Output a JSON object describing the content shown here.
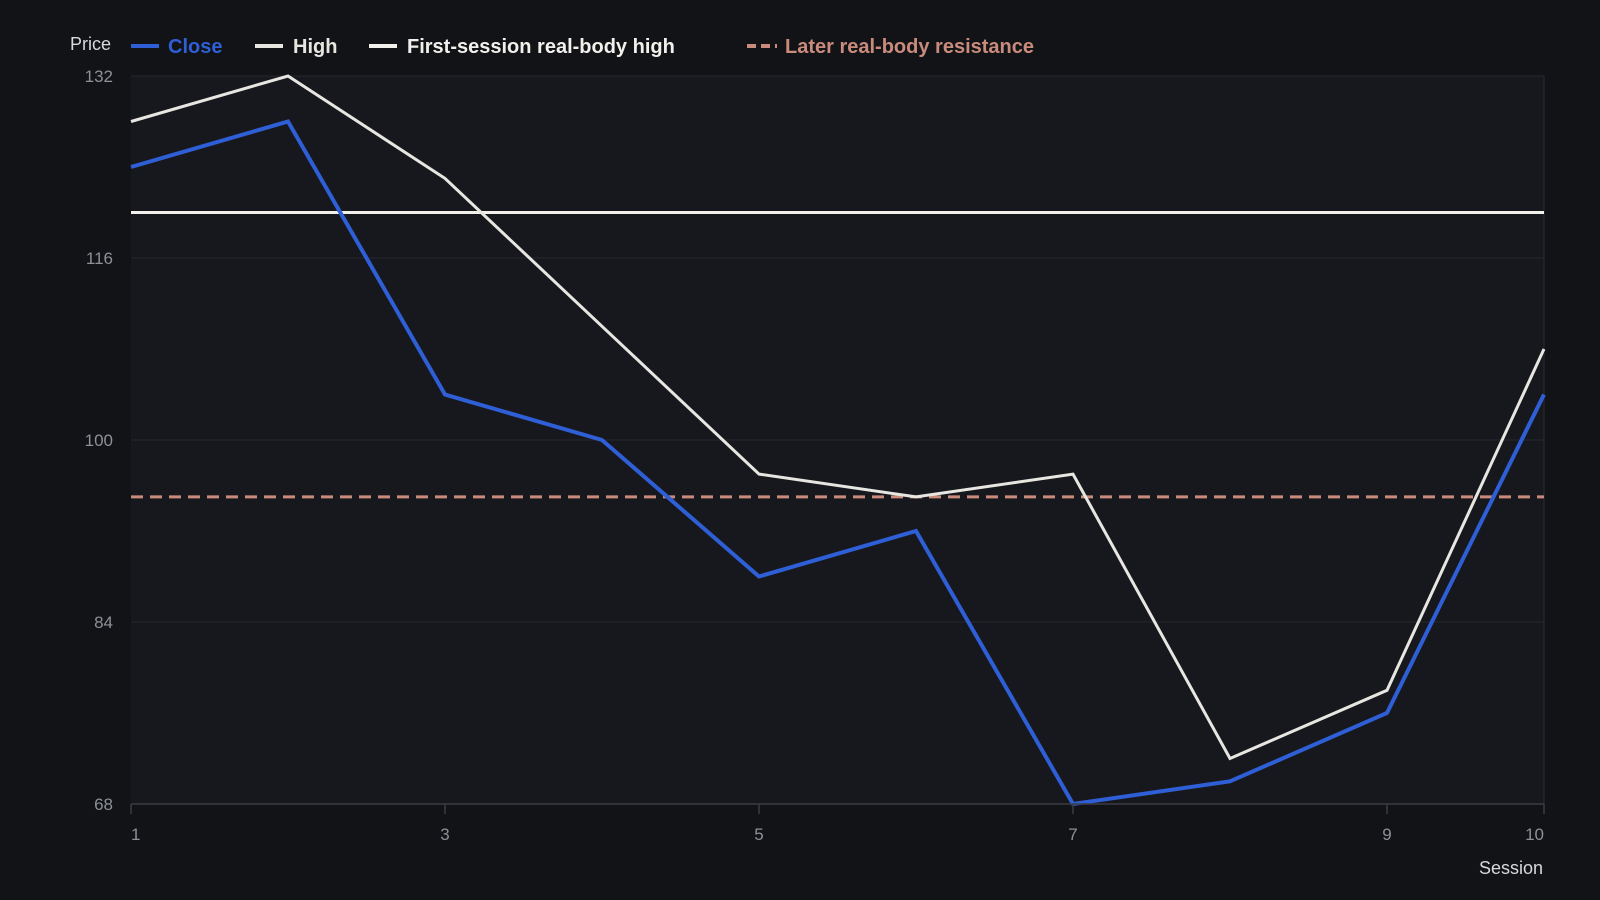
{
  "chart_data": {
    "type": "line",
    "ylabel": "Price",
    "xlabel": "Session",
    "x": [
      1,
      2,
      3,
      4,
      5,
      6,
      7,
      8,
      9,
      10
    ],
    "xticks": [
      "1",
      "3",
      "5",
      "7",
      "9",
      "10"
    ],
    "xlim": [
      1,
      10
    ],
    "ylim": [
      68,
      132
    ],
    "yticks": [
      "132",
      "116",
      "100",
      "84",
      "68"
    ],
    "grid": "horizontal",
    "legend_position": "top-left",
    "series": [
      {
        "name": "Close",
        "color": "#2f5fd6",
        "style": "solid",
        "values": [
          124,
          128,
          104,
          100,
          88,
          92,
          68,
          70,
          76,
          104
        ]
      },
      {
        "name": "High",
        "color": "#e8e6e1",
        "style": "solid",
        "values": [
          128,
          132,
          123,
          110,
          97,
          95,
          97,
          72,
          78,
          108
        ]
      }
    ],
    "reference_lines": [
      {
        "name": "First-session real-body high",
        "value": 120,
        "color": "#f2f0ea",
        "style": "solid"
      },
      {
        "name": "Later real-body resistance",
        "value": 95,
        "color": "#c98b7c",
        "style": "dashed"
      }
    ]
  }
}
